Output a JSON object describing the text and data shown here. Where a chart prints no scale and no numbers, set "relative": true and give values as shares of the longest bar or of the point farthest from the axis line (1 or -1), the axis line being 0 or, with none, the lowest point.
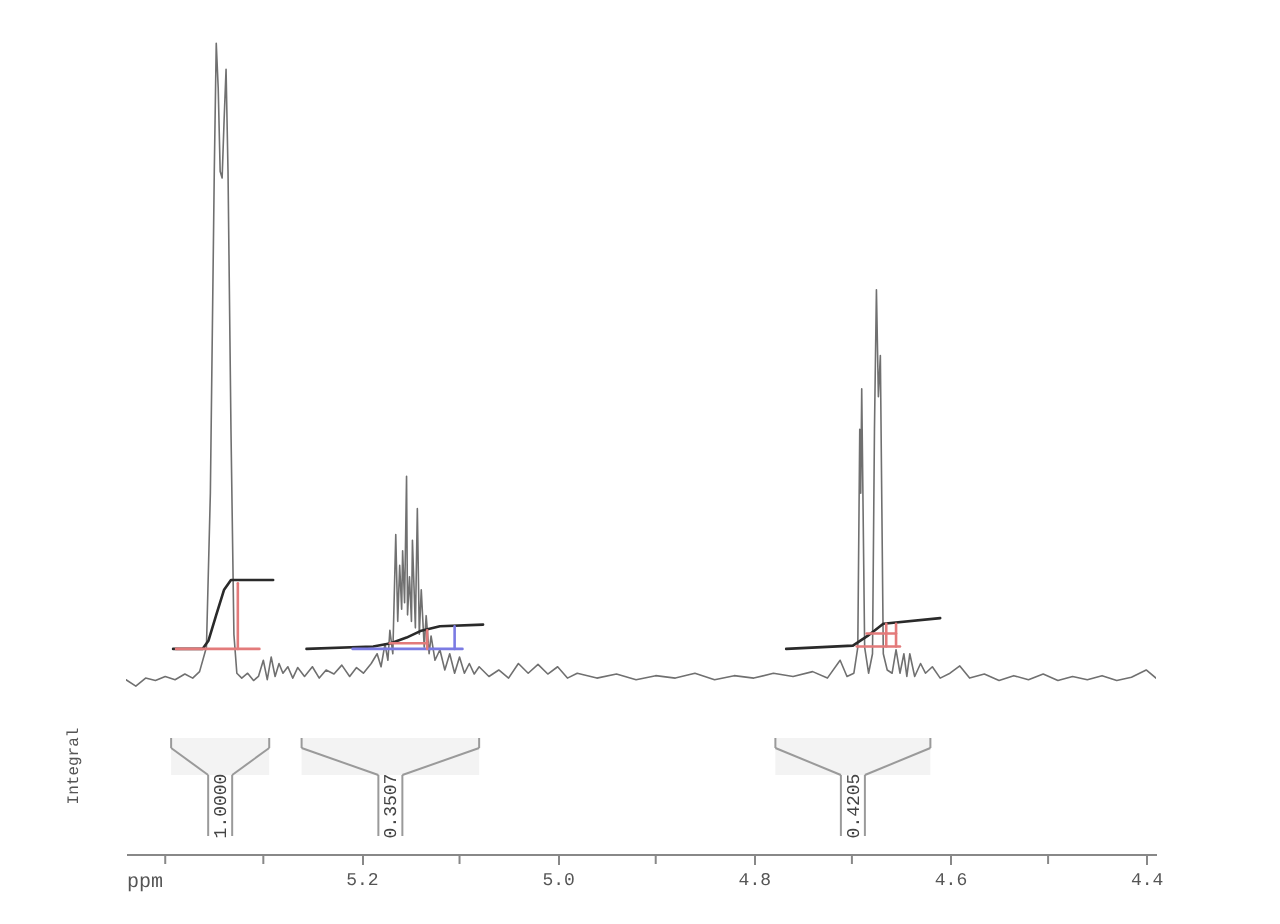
{
  "chart_data": {
    "type": "line",
    "relative": true,
    "xlabel": "ppm",
    "xlim": [
      5.44,
      4.39
    ],
    "xticks": [
      {
        "value": 5.4,
        "label": null
      },
      {
        "value": 5.3,
        "label": null
      },
      5.2,
      {
        "value": 5.1,
        "label": null
      },
      {
        "value": 5.0,
        "label": "5.0"
      },
      {
        "value": 4.9,
        "label": null
      },
      4.8,
      {
        "value": 4.7,
        "label": null
      },
      4.6,
      {
        "value": 4.5,
        "label": null
      },
      4.4
    ],
    "series": [
      {
        "color": "#707070",
        "x": [
          5.44,
          5.43,
          5.42,
          5.41,
          5.4,
          5.39,
          5.38,
          5.372,
          5.365,
          5.358,
          5.354,
          5.35,
          5.348,
          5.346,
          5.344,
          5.342,
          5.34,
          5.338,
          5.336,
          5.333,
          5.33,
          5.327,
          5.322,
          5.316,
          5.31,
          5.305,
          5.3,
          5.296,
          5.292,
          5.288,
          5.284,
          5.28,
          5.275,
          5.27,
          5.265,
          5.258,
          5.25,
          5.243,
          5.236,
          5.228,
          5.22,
          5.212,
          5.205,
          5.198,
          5.19,
          5.184,
          5.18,
          5.176,
          5.173,
          5.171,
          5.168,
          5.165,
          5.163,
          5.161,
          5.159,
          5.158,
          5.156,
          5.154,
          5.153,
          5.151,
          5.149,
          5.148,
          5.145,
          5.143,
          5.141,
          5.139,
          5.136,
          5.134,
          5.131,
          5.129,
          5.125,
          5.12,
          5.115,
          5.11,
          5.105,
          5.1,
          5.095,
          5.09,
          5.085,
          5.08,
          5.07,
          5.06,
          5.05,
          5.04,
          5.03,
          5.02,
          5.01,
          5.0,
          4.99,
          4.98,
          4.96,
          4.94,
          4.92,
          4.9,
          4.88,
          4.86,
          4.84,
          4.82,
          4.8,
          4.78,
          4.76,
          4.74,
          4.725,
          4.712,
          4.705,
          4.698,
          4.694,
          4.692,
          4.691,
          4.69,
          4.687,
          4.683,
          4.679,
          4.677,
          4.675,
          4.673,
          4.671,
          4.668,
          4.664,
          4.659,
          4.655,
          4.651,
          4.647,
          4.644,
          4.641,
          4.636,
          4.63,
          4.625,
          4.618,
          4.61,
          4.6,
          4.59,
          4.58,
          4.565,
          4.55,
          4.535,
          4.52,
          4.505,
          4.49,
          4.475,
          4.46,
          4.445,
          4.43,
          4.415,
          4.4,
          4.39
        ],
        "values": [
          0.215,
          0.207,
          0.217,
          0.214,
          0.219,
          0.215,
          0.222,
          0.217,
          0.225,
          0.255,
          0.445,
          0.842,
          1,
          0.945,
          0.842,
          0.834,
          0.905,
          0.968,
          0.842,
          0.524,
          0.271,
          0.223,
          0.217,
          0.223,
          0.214,
          0.219,
          0.239,
          0.215,
          0.243,
          0.219,
          0.235,
          0.223,
          0.231,
          0.217,
          0.23,
          0.219,
          0.231,
          0.217,
          0.227,
          0.222,
          0.233,
          0.219,
          0.23,
          0.223,
          0.235,
          0.247,
          0.231,
          0.259,
          0.239,
          0.276,
          0.247,
          0.394,
          0.287,
          0.356,
          0.302,
          0.374,
          0.31,
          0.466,
          0.295,
          0.342,
          0.287,
          0.387,
          0.279,
          0.426,
          0.271,
          0.326,
          0.255,
          0.294,
          0.247,
          0.269,
          0.239,
          0.252,
          0.227,
          0.247,
          0.223,
          0.243,
          0.223,
          0.235,
          0.222,
          0.231,
          0.219,
          0.227,
          0.217,
          0.235,
          0.223,
          0.234,
          0.222,
          0.231,
          0.217,
          0.223,
          0.217,
          0.222,
          0.215,
          0.22,
          0.217,
          0.223,
          0.215,
          0.22,
          0.217,
          0.223,
          0.219,
          0.225,
          0.217,
          0.239,
          0.219,
          0.223,
          0.255,
          0.524,
          0.445,
          0.574,
          0.255,
          0.223,
          0.247,
          0.524,
          0.696,
          0.564,
          0.615,
          0.247,
          0.227,
          0.223,
          0.252,
          0.223,
          0.247,
          0.219,
          0.247,
          0.219,
          0.235,
          0.223,
          0.231,
          0.217,
          0.223,
          0.232,
          0.217,
          0.222,
          0.214,
          0.22,
          0.215,
          0.222,
          0.214,
          0.219,
          0.215,
          0.22,
          0.214,
          0.218,
          0.227,
          0.217
        ]
      },
      {
        "color": "#2a2a2a",
        "x": [
          5.392,
          5.362,
          5.356,
          5.348,
          5.34,
          5.333,
          5.29
        ],
        "values": [
          0.253,
          0.253,
          0.263,
          0.295,
          0.326,
          0.338,
          0.338
        ]
      },
      {
        "color": "#2a2a2a",
        "x": [
          5.256,
          5.188,
          5.17,
          5.154,
          5.14,
          5.12,
          5.076
        ],
        "values": [
          0.253,
          0.256,
          0.26,
          0.267,
          0.275,
          0.281,
          0.283
        ]
      },
      {
        "color": "#2a2a2a",
        "x": [
          4.767,
          4.699,
          4.684,
          4.668,
          4.61
        ],
        "values": [
          0.253,
          0.257,
          0.269,
          0.284,
          0.291
        ]
      },
      {
        "color": "#e37b7b",
        "x": [
          5.389,
          5.304
        ],
        "values": [
          0.253,
          0.253
        ]
      },
      {
        "color": "#e37b7b",
        "x": [
          5.326,
          5.326
        ],
        "values": [
          0.253,
          0.334
        ]
      },
      {
        "color": "#7b7be3",
        "x": [
          5.209,
          5.097
        ],
        "values": [
          0.253,
          0.253
        ]
      },
      {
        "color": "#7b7be3",
        "x": [
          5.105,
          5.105
        ],
        "values": [
          0.253,
          0.281
        ]
      },
      {
        "color": "#e37b7b",
        "x": [
          5.171,
          5.133
        ],
        "values": [
          0.26,
          0.26
        ]
      },
      {
        "color": "#e37b7b",
        "x": [
          5.133,
          5.133
        ],
        "values": [
          0.253,
          0.276
        ]
      },
      {
        "color": "#e37b7b",
        "x": [
          4.695,
          4.651
        ],
        "values": [
          0.256,
          0.256
        ]
      },
      {
        "color": "#e37b7b",
        "x": [
          4.685,
          4.655
        ],
        "values": [
          0.272,
          0.272
        ]
      },
      {
        "color": "#e37b7b",
        "x": [
          4.665,
          4.665
        ],
        "values": [
          0.256,
          0.284
        ]
      },
      {
        "color": "#e37b7b",
        "x": [
          4.655,
          4.655
        ],
        "values": [
          0.256,
          0.284
        ]
      }
    ],
    "bands": [
      {
        "axis": "x",
        "from": 5.394,
        "to": 5.294,
        "label": "1.0000",
        "color": "#9a9a9a"
      },
      {
        "axis": "x",
        "from": 5.261,
        "to": 5.08,
        "label": "0.3507",
        "color": "#9a9a9a"
      },
      {
        "axis": "x",
        "from": 4.778,
        "to": 4.62,
        "label": "0.4205",
        "color": "#9a9a9a"
      }
    ],
    "annotations": [
      "Integral"
    ]
  }
}
